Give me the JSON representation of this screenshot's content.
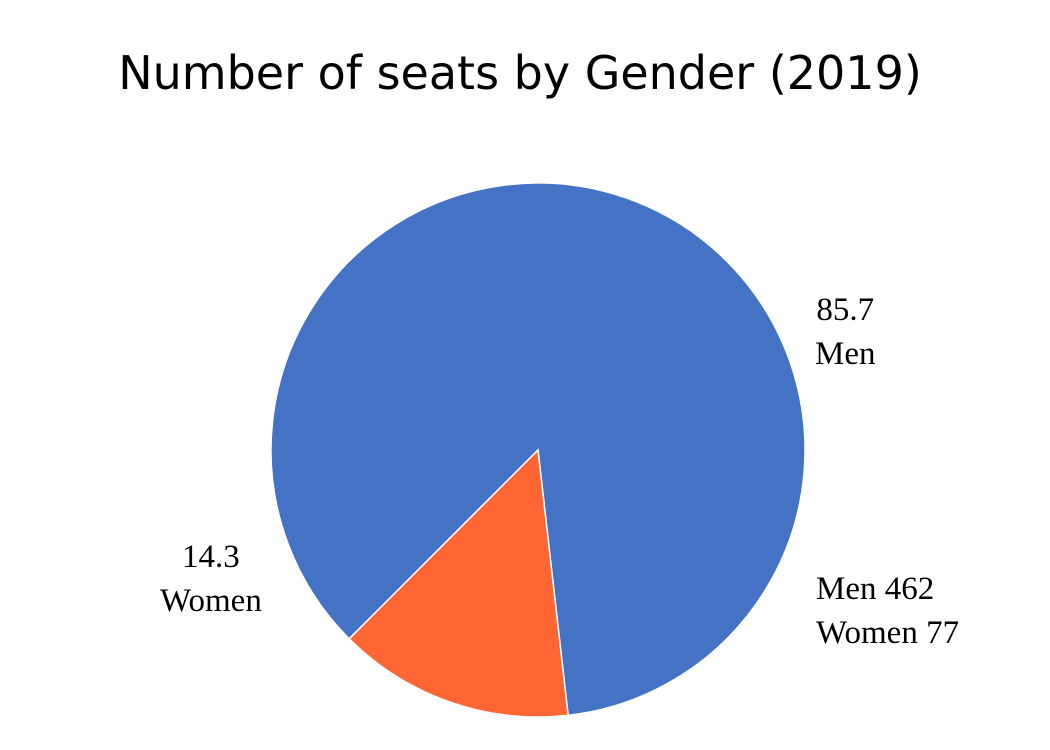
{
  "chart_data": {
    "type": "pie",
    "title": "Number of seats by Gender (2019)",
    "slices": [
      {
        "label": "Men",
        "value": 85.7,
        "value_text": "85.7",
        "color": "#4472C4"
      },
      {
        "label": "Women",
        "value": 14.3,
        "value_text": "14.3",
        "color": "#FF6633"
      }
    ],
    "annotations": [
      "Men 462",
      "Women 77"
    ]
  }
}
